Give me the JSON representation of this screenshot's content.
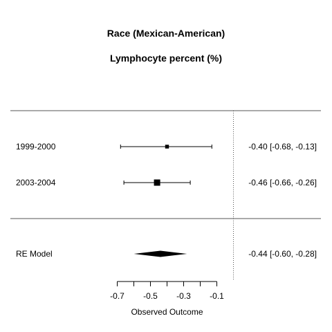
{
  "chart_data": {
    "type": "forest",
    "title": "Race (Mexican-American)",
    "subtitle": "Lymphocyte percent (%)",
    "xlabel": "Observed Outcome",
    "xlim": [
      -0.7,
      -0.1
    ],
    "ticks": [
      -0.7,
      -0.6,
      -0.5,
      -0.4,
      -0.3,
      -0.2,
      -0.1
    ],
    "tick_labels": [
      "-0.7",
      "-0.5",
      "-0.3",
      "-0.1"
    ],
    "reference_line": 0.0,
    "studies": [
      {
        "label": "1999-2000",
        "estimate": -0.4,
        "ci_lower": -0.68,
        "ci_upper": -0.13,
        "ci_text": "-0.40 [-0.68, -0.13]",
        "weight": 0.14
      },
      {
        "label": "2003-2004",
        "estimate": -0.46,
        "ci_lower": -0.66,
        "ci_upper": -0.26,
        "ci_text": "-0.46 [-0.66, -0.26]",
        "weight": 0.86
      }
    ],
    "summary": {
      "label": "RE Model",
      "estimate": -0.44,
      "ci_lower": -0.6,
      "ci_upper": -0.28,
      "ci_text": "-0.44 [-0.60, -0.28]"
    }
  }
}
